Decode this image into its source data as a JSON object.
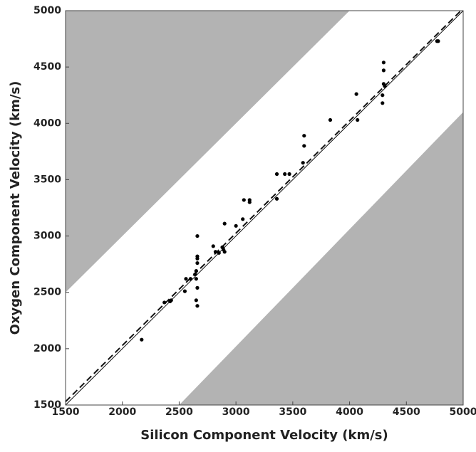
{
  "chart_data": {
    "type": "scatter",
    "x_label": "Silicon Component Velocity (km/s)",
    "y_label": "Oxygen Component Velocity (km/s)",
    "xlim": [
      1500,
      5000
    ],
    "ylim": [
      1500,
      5000
    ],
    "xticks": [
      1500,
      2000,
      2500,
      3000,
      3500,
      4000,
      4500,
      5000
    ],
    "yticks": [
      1500,
      2000,
      2500,
      3000,
      3500,
      4000,
      4500,
      5000
    ],
    "color": "#000000",
    "region_color": "#b3b3b3",
    "regions": [
      {
        "x": [
          1500,
          1500,
          4000
        ],
        "y": [
          2500,
          5000,
          5000
        ]
      },
      {
        "x": [
          2500,
          5000,
          5000
        ],
        "y": [
          1500,
          4100,
          1500
        ]
      }
    ],
    "lines": [
      {
        "style": "solid",
        "x": [
          1500,
          5000
        ],
        "y": [
          1500,
          5000
        ]
      },
      {
        "style": "dashed",
        "x": [
          1500,
          4980
        ],
        "y": [
          1530,
          5000
        ]
      }
    ],
    "x": [
      2170,
      2370,
      2420,
      2430,
      2550,
      2560,
      2600,
      2640,
      2650,
      2650,
      2660,
      2650,
      2660,
      2660,
      2660,
      2660,
      2660,
      2800,
      2820,
      2850,
      2880,
      2890,
      2900,
      2900,
      3000,
      3060,
      3070,
      3120,
      3120,
      3360,
      3360,
      3430,
      3470,
      3590,
      3600,
      3600,
      3830,
      4060,
      4070,
      4290,
      4290,
      4300,
      4300,
      4300,
      4310,
      4770,
      4780
    ],
    "values": [
      2080,
      2410,
      2420,
      2430,
      2510,
      2620,
      2620,
      2660,
      2690,
      2620,
      2540,
      2430,
      2380,
      2760,
      2800,
      2820,
      3000,
      2910,
      2860,
      2850,
      2900,
      2880,
      2860,
      3110,
      3090,
      3150,
      3320,
      3320,
      3300,
      3550,
      3330,
      3550,
      3550,
      3650,
      3800,
      3890,
      4030,
      4260,
      4030,
      4180,
      4250,
      4350,
      4470,
      4540,
      4330,
      4730,
      4730
    ]
  }
}
